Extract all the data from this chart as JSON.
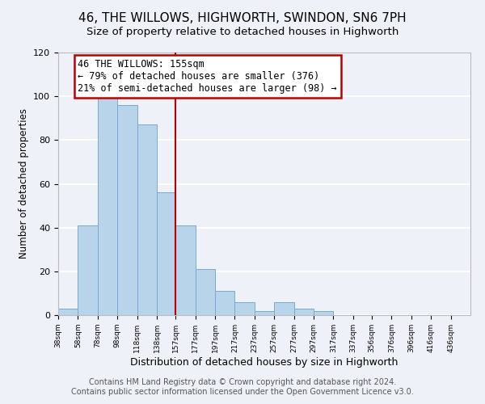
{
  "title": "46, THE WILLOWS, HIGHWORTH, SWINDON, SN6 7PH",
  "subtitle": "Size of property relative to detached houses in Highworth",
  "xlabel": "Distribution of detached houses by size in Highworth",
  "ylabel": "Number of detached properties",
  "bar_color": "#b8d4ea",
  "bar_edge_color": "#7aaad0",
  "background_color": "#eef2f8",
  "plot_bg_color": "#eef2f8",
  "grid_color": "white",
  "bin_labels": [
    "38sqm",
    "58sqm",
    "78sqm",
    "98sqm",
    "118sqm",
    "138sqm",
    "157sqm",
    "177sqm",
    "197sqm",
    "217sqm",
    "237sqm",
    "257sqm",
    "277sqm",
    "297sqm",
    "317sqm",
    "337sqm",
    "356sqm",
    "376sqm",
    "396sqm",
    "416sqm",
    "436sqm"
  ],
  "bin_edges": [
    38,
    58,
    78,
    98,
    118,
    138,
    157,
    177,
    197,
    217,
    237,
    257,
    277,
    297,
    317,
    337,
    356,
    376,
    396,
    416,
    436
  ],
  "bar_heights": [
    3,
    41,
    100,
    96,
    87,
    56,
    41,
    21,
    11,
    6,
    2,
    6,
    3,
    2,
    0,
    0,
    0,
    0,
    0,
    0
  ],
  "ylim": [
    0,
    120
  ],
  "yticks": [
    0,
    20,
    40,
    60,
    80,
    100,
    120
  ],
  "property_line_x": 157,
  "property_line_color": "#bb0000",
  "annotation_text": "46 THE WILLOWS: 155sqm\n← 79% of detached houses are smaller (376)\n21% of semi-detached houses are larger (98) →",
  "annotation_box_color": "white",
  "annotation_box_edge": "#bb0000",
  "footer_line1": "Contains HM Land Registry data © Crown copyright and database right 2024.",
  "footer_line2": "Contains public sector information licensed under the Open Government Licence v3.0.",
  "title_fontsize": 11,
  "subtitle_fontsize": 9.5,
  "annotation_fontsize": 8.5,
  "footer_fontsize": 7
}
